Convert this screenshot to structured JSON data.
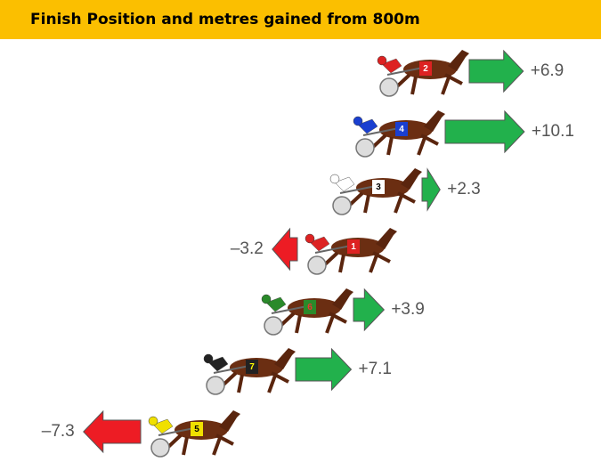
{
  "chart_data": {
    "type": "arrow",
    "title": "Finish Position and metres gained from 800m",
    "categories": [
      "2",
      "4",
      "3",
      "1",
      "6",
      "7",
      "5"
    ],
    "values": [
      6.9,
      10.1,
      2.3,
      -3.2,
      3.9,
      7.1,
      -7.3
    ],
    "value_labels": [
      "+6.9",
      "+10.1",
      "+2.3",
      "–3.2",
      "+3.9",
      "+7.1",
      "–7.3"
    ],
    "positive_color": "#22b14c",
    "negative_color": "#ed1c24",
    "title_background": "#fbbf00"
  }
}
